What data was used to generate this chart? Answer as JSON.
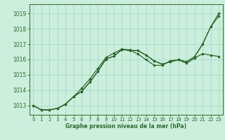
{
  "xlabel": "Graphe pression niveau de la mer (hPa)",
  "background_color": "#cceedd",
  "grid_color": "#aaddcc",
  "line_color": "#2d6a2d",
  "xlim": [
    -0.5,
    23.5
  ],
  "ylim": [
    1012.4,
    1019.6
  ],
  "yticks": [
    1013,
    1014,
    1015,
    1016,
    1017,
    1018,
    1019
  ],
  "xticks": [
    0,
    1,
    2,
    3,
    4,
    5,
    6,
    7,
    8,
    9,
    10,
    11,
    12,
    13,
    14,
    15,
    16,
    17,
    18,
    19,
    20,
    21,
    22,
    23
  ],
  "series1": [
    1013.0,
    1012.72,
    1012.72,
    1012.82,
    1013.1,
    1013.58,
    1013.92,
    1014.52,
    1015.22,
    1016.02,
    1016.22,
    1016.65,
    1016.58,
    1016.58,
    1016.28,
    1015.9,
    1015.7,
    1015.85,
    1015.98,
    1015.85,
    1016.18,
    1017.0,
    1018.12,
    1018.82
  ],
  "series2": [
    1013.0,
    1012.72,
    1012.72,
    1012.82,
    1013.1,
    1013.58,
    1013.92,
    1014.52,
    1015.22,
    1016.02,
    1016.22,
    1016.65,
    1016.58,
    1016.58,
    1016.28,
    1015.9,
    1015.7,
    1015.85,
    1015.98,
    1015.85,
    1016.18,
    1017.0,
    1018.12,
    1019.0
  ],
  "series3": [
    1013.0,
    1012.72,
    1012.72,
    1012.82,
    1013.1,
    1013.58,
    1014.12,
    1014.72,
    1015.42,
    1016.12,
    1016.42,
    1016.68,
    1016.62,
    1016.35,
    1015.98,
    1015.62,
    1015.62,
    1015.92,
    1015.98,
    1015.75,
    1016.08,
    1016.38,
    1016.28,
    1016.2
  ]
}
